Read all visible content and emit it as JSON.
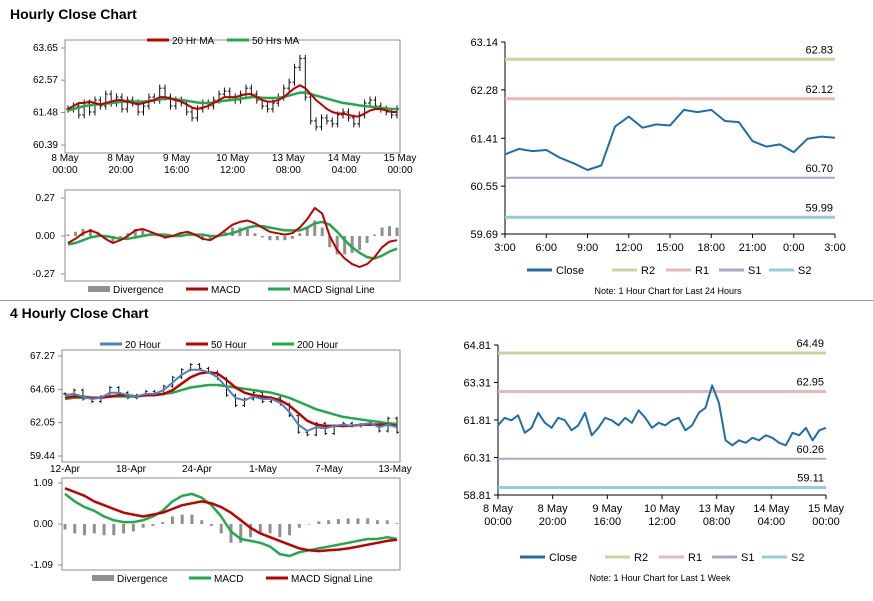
{
  "sections": {
    "hourly_title": "Hourly Close Chart",
    "four_hourly_title": "4 Hourly Close Chart"
  },
  "colors": {
    "red": "#c00000",
    "green": "#1faa4b",
    "blue": "#4f81bd",
    "close_line": "#1f6eaa",
    "r2": "#c4d79b",
    "r1": "#e6b9b8",
    "s1": "#b3a2c7",
    "s2": "#93cddd",
    "divergence": "#909090"
  },
  "chart_data": [
    {
      "id": "hourly-price",
      "type": "line",
      "title": "",
      "legend": [
        "20 Hr MA",
        "50 Hrs MA"
      ],
      "y_ticks": [
        "63.65",
        "62.57",
        "61.48",
        "60.39"
      ],
      "ylim": [
        60.39,
        63.65
      ],
      "x_ticks": [
        [
          "8 May",
          "00:00"
        ],
        [
          "8 May",
          "20:00"
        ],
        [
          "9 May",
          "16:00"
        ],
        [
          "10 May",
          "12:00"
        ],
        [
          "13 May",
          "08:00"
        ],
        [
          "14 May",
          "04:00"
        ],
        [
          "15 May",
          "00:00"
        ]
      ],
      "series": [
        {
          "name": "Price",
          "values": [
            61.6,
            61.7,
            61.4,
            61.8,
            61.5,
            61.9,
            61.7,
            62.1,
            61.8,
            62.0,
            61.6,
            61.9,
            61.8,
            61.5,
            61.7,
            62.0,
            61.9,
            62.3,
            62.0,
            61.7,
            61.9,
            61.8,
            61.5,
            61.3,
            61.6,
            61.8,
            61.7,
            61.9,
            62.1,
            62.2,
            62.0,
            61.9,
            62.1,
            62.3,
            62.1,
            61.9,
            61.7,
            61.6,
            61.8,
            62.0,
            62.3,
            62.5,
            63.0,
            63.3,
            62.0,
            61.2,
            61.0,
            61.3,
            61.2,
            61.1,
            61.4,
            61.5,
            61.3,
            61.1,
            61.4,
            61.8,
            61.9,
            61.7,
            61.6,
            61.5,
            61.4,
            61.6
          ]
        },
        {
          "name": "20 Hr MA",
          "values": [
            61.6,
            61.7,
            61.8,
            61.8,
            61.85,
            61.8,
            61.75,
            61.8,
            61.85,
            61.9,
            61.9,
            61.85,
            61.8,
            61.75,
            61.8,
            61.85,
            61.9,
            62.0,
            62.0,
            61.95,
            61.9,
            61.85,
            61.75,
            61.65,
            61.6,
            61.65,
            61.7,
            61.8,
            61.9,
            62.0,
            62.0,
            62.0,
            62.05,
            62.1,
            62.1,
            62.0,
            61.9,
            61.85,
            61.85,
            61.9,
            62.0,
            62.15,
            62.3,
            62.4,
            62.3,
            62.1,
            61.9,
            61.75,
            61.6,
            61.5,
            61.45,
            61.45,
            61.4,
            61.35,
            61.35,
            61.45,
            61.55,
            61.6,
            61.6,
            61.55,
            61.5,
            61.5
          ]
        },
        {
          "name": "50 Hrs MA",
          "values": [
            61.55,
            61.6,
            61.65,
            61.7,
            61.72,
            61.75,
            61.75,
            61.78,
            61.8,
            61.82,
            61.85,
            61.85,
            61.85,
            61.85,
            61.85,
            61.87,
            61.9,
            61.92,
            61.95,
            61.95,
            61.93,
            61.9,
            61.88,
            61.85,
            61.82,
            61.8,
            61.8,
            61.82,
            61.85,
            61.88,
            61.9,
            61.92,
            61.95,
            61.97,
            62.0,
            62.0,
            61.98,
            61.97,
            61.97,
            61.98,
            62.0,
            62.05,
            62.1,
            62.15,
            62.15,
            62.1,
            62.05,
            62.0,
            61.95,
            61.9,
            61.85,
            61.8,
            61.78,
            61.75,
            61.72,
            61.7,
            61.68,
            61.66,
            61.64,
            61.62,
            61.6,
            61.6
          ]
        }
      ]
    },
    {
      "id": "hourly-macd",
      "type": "line",
      "legend": [
        "Divergence",
        "MACD",
        "MACD Signal Line"
      ],
      "y_ticks": [
        "0.27",
        "0.00",
        "-0.27"
      ],
      "ylim": [
        -0.27,
        0.27
      ],
      "series": [
        {
          "name": "MACD",
          "values": [
            -0.05,
            -0.02,
            0.02,
            0.04,
            0.02,
            -0.02,
            -0.05,
            -0.03,
            0.0,
            0.04,
            0.05,
            0.03,
            0.01,
            -0.01,
            0.0,
            0.02,
            0.03,
            0.01,
            -0.02,
            -0.03,
            0.0,
            0.04,
            0.08,
            0.1,
            0.11,
            0.09,
            0.06,
            0.03,
            0.02,
            0.01,
            0.02,
            0.06,
            0.12,
            0.2,
            0.16,
            0.0,
            -0.1,
            -0.16,
            -0.2,
            -0.22,
            -0.2,
            -0.15,
            -0.08,
            -0.04,
            -0.03
          ]
        },
        {
          "name": "MACD Signal Line",
          "values": [
            -0.06,
            -0.05,
            -0.03,
            -0.01,
            0.0,
            0.0,
            -0.01,
            -0.02,
            -0.02,
            -0.01,
            0.0,
            0.01,
            0.01,
            0.01,
            0.0,
            0.0,
            0.01,
            0.01,
            0.01,
            0.0,
            0.0,
            0.01,
            0.02,
            0.04,
            0.06,
            0.07,
            0.07,
            0.06,
            0.05,
            0.04,
            0.04,
            0.04,
            0.06,
            0.09,
            0.1,
            0.08,
            0.03,
            -0.03,
            -0.08,
            -0.12,
            -0.15,
            -0.16,
            -0.14,
            -0.11,
            -0.09
          ]
        },
        {
          "name": "Divergence",
          "values": [
            0.01,
            0.03,
            0.05,
            0.05,
            0.02,
            -0.02,
            -0.04,
            -0.01,
            0.02,
            0.05,
            0.05,
            0.02,
            0.0,
            -0.02,
            0.0,
            0.02,
            0.02,
            0.0,
            -0.03,
            -0.03,
            0.0,
            0.03,
            0.06,
            0.06,
            0.05,
            0.02,
            -0.01,
            -0.03,
            -0.03,
            -0.03,
            -0.02,
            0.02,
            0.06,
            0.11,
            0.06,
            -0.08,
            -0.13,
            -0.13,
            -0.12,
            -0.1,
            -0.05,
            0.01,
            0.06,
            0.07,
            0.06
          ]
        }
      ]
    },
    {
      "id": "hourly-pivot",
      "type": "line",
      "y_ticks": [
        "63.14",
        "62.28",
        "61.41",
        "60.55",
        "59.69"
      ],
      "ylim": [
        59.69,
        63.14
      ],
      "x_ticks": [
        "3:00",
        "6:00",
        "9:00",
        "12:00",
        "15:00",
        "18:00",
        "21:00",
        "0:00",
        "3:00"
      ],
      "levels": [
        {
          "name": "R2",
          "value": 62.83,
          "label": "62.83"
        },
        {
          "name": "R1",
          "value": 62.12,
          "label": "62.12"
        },
        {
          "name": "S1",
          "value": 60.7,
          "label": "60.70"
        },
        {
          "name": "S2",
          "value": 59.99,
          "label": "59.99"
        }
      ],
      "close": [
        61.12,
        61.22,
        61.18,
        61.2,
        61.06,
        60.96,
        60.84,
        60.92,
        61.62,
        61.8,
        61.6,
        61.66,
        61.64,
        61.92,
        61.88,
        61.92,
        61.72,
        61.7,
        61.36,
        61.26,
        61.3,
        61.16,
        61.4,
        61.44,
        61.42
      ],
      "legend": [
        "Close",
        "R2",
        "R1",
        "S1",
        "S2"
      ],
      "note": "Note: 1 Hour Chart for Last 24 Hours"
    },
    {
      "id": "four-hourly-price",
      "type": "line",
      "legend": [
        "20 Hour",
        "50 Hour",
        "200 Hour"
      ],
      "y_ticks": [
        "67.27",
        "64.66",
        "62.05",
        "59.44"
      ],
      "ylim": [
        59.44,
        67.27
      ],
      "x_ticks": [
        "12-Apr",
        "18-Apr",
        "24-Apr",
        "1-May",
        "7-May",
        "13-May"
      ],
      "series": [
        {
          "name": "Price",
          "values": [
            64.3,
            64.6,
            63.9,
            63.7,
            64.1,
            64.8,
            64.4,
            64.0,
            64.2,
            64.5,
            64.3,
            64.9,
            65.6,
            66.2,
            66.6,
            66.3,
            66.0,
            65.5,
            64.2,
            63.4,
            63.9,
            64.4,
            63.7,
            64.0,
            63.5,
            62.6,
            61.3,
            61.1,
            62.0,
            61.2,
            61.8,
            62.0,
            61.8,
            61.9,
            62.1,
            61.4,
            62.4,
            61.3
          ]
        },
        {
          "name": "20 Hour",
          "values": [
            64.2,
            64.3,
            64.1,
            63.9,
            64.0,
            64.4,
            64.4,
            64.2,
            64.1,
            64.3,
            64.3,
            64.6,
            65.2,
            65.8,
            66.2,
            66.2,
            66.0,
            65.6,
            64.8,
            64.0,
            63.8,
            64.1,
            63.9,
            63.9,
            63.6,
            62.9,
            61.9,
            61.4,
            61.7,
            61.6,
            61.8,
            61.9,
            61.8,
            61.9,
            62.0,
            61.7,
            61.9,
            61.7
          ]
        },
        {
          "name": "50 Hour",
          "values": [
            64.0,
            64.1,
            64.1,
            64.0,
            64.0,
            64.1,
            64.2,
            64.2,
            64.1,
            64.2,
            64.2,
            64.3,
            64.6,
            65.1,
            65.6,
            65.9,
            66.0,
            65.9,
            65.4,
            64.8,
            64.4,
            64.2,
            64.1,
            64.0,
            63.8,
            63.4,
            62.8,
            62.2,
            61.9,
            61.8,
            61.8,
            61.8,
            61.8,
            61.9,
            61.9,
            61.9,
            61.9,
            61.8
          ]
        },
        {
          "name": "200 Hour",
          "values": [
            63.9,
            64.0,
            64.0,
            64.0,
            64.0,
            64.1,
            64.1,
            64.1,
            64.1,
            64.2,
            64.2,
            64.3,
            64.4,
            64.6,
            64.8,
            64.9,
            65.0,
            65.0,
            64.9,
            64.8,
            64.7,
            64.6,
            64.5,
            64.4,
            64.2,
            64.0,
            63.7,
            63.4,
            63.1,
            62.9,
            62.7,
            62.5,
            62.4,
            62.3,
            62.2,
            62.1,
            62.0,
            61.95
          ]
        }
      ]
    },
    {
      "id": "four-hourly-macd",
      "type": "line",
      "legend": [
        "Divergence",
        "MACD",
        "MACD Signal Line"
      ],
      "y_ticks": [
        "1.09",
        "0.00",
        "-1.09"
      ],
      "ylim": [
        -1.09,
        1.09
      ],
      "series": [
        {
          "name": "MACD",
          "values": [
            0.8,
            0.6,
            0.45,
            0.35,
            0.2,
            0.1,
            0.05,
            0.05,
            0.1,
            0.2,
            0.35,
            0.6,
            0.75,
            0.8,
            0.7,
            0.5,
            0.2,
            -0.2,
            -0.4,
            -0.45,
            -0.5,
            -0.6,
            -0.8,
            -0.85,
            -0.75,
            -0.7,
            -0.65,
            -0.6,
            -0.55,
            -0.5,
            -0.45,
            -0.4,
            -0.4,
            -0.35,
            -0.4
          ]
        },
        {
          "name": "MACD Signal Line",
          "values": [
            0.95,
            0.85,
            0.75,
            0.6,
            0.5,
            0.4,
            0.3,
            0.25,
            0.2,
            0.25,
            0.3,
            0.4,
            0.5,
            0.55,
            0.6,
            0.55,
            0.45,
            0.3,
            0.1,
            -0.1,
            -0.25,
            -0.35,
            -0.45,
            -0.55,
            -0.65,
            -0.7,
            -0.72,
            -0.7,
            -0.68,
            -0.65,
            -0.6,
            -0.55,
            -0.5,
            -0.45,
            -0.42
          ]
        },
        {
          "name": "Divergence",
          "values": [
            -0.15,
            -0.25,
            -0.3,
            -0.25,
            -0.3,
            -0.3,
            -0.25,
            -0.2,
            -0.1,
            -0.05,
            0.05,
            0.2,
            0.25,
            0.25,
            0.1,
            -0.05,
            -0.25,
            -0.5,
            -0.5,
            -0.35,
            -0.25,
            -0.25,
            -0.35,
            -0.3,
            -0.1,
            0.0,
            0.07,
            0.1,
            0.13,
            0.15,
            0.15,
            0.15,
            0.1,
            0.1,
            0.02
          ]
        }
      ]
    },
    {
      "id": "four-hourly-pivot",
      "type": "line",
      "y_ticks": [
        "64.81",
        "63.31",
        "61.81",
        "60.31",
        "58.81"
      ],
      "ylim": [
        58.81,
        64.81
      ],
      "x_ticks": [
        [
          "8 May",
          "00:00"
        ],
        [
          "8 May",
          "20:00"
        ],
        [
          "9 May",
          "16:00"
        ],
        [
          "10 May",
          "12:00"
        ],
        [
          "13 May",
          "08:00"
        ],
        [
          "14 May",
          "04:00"
        ],
        [
          "15 May",
          "00:00"
        ]
      ],
      "levels": [
        {
          "name": "R2",
          "value": 64.49,
          "label": "64.49"
        },
        {
          "name": "R1",
          "value": 62.95,
          "label": "62.95"
        },
        {
          "name": "S1",
          "value": 60.26,
          "label": "60.26"
        },
        {
          "name": "S2",
          "value": 59.11,
          "label": "59.11"
        }
      ],
      "close": [
        61.6,
        61.9,
        61.8,
        62.0,
        61.3,
        61.5,
        62.1,
        61.7,
        61.5,
        61.9,
        61.8,
        61.4,
        61.6,
        62.1,
        61.2,
        61.5,
        61.9,
        61.8,
        61.6,
        61.9,
        61.7,
        62.2,
        61.9,
        61.5,
        61.7,
        61.6,
        61.8,
        61.9,
        61.4,
        61.6,
        62.1,
        62.3,
        63.2,
        62.5,
        61.0,
        60.8,
        61.0,
        60.9,
        61.1,
        61.0,
        61.2,
        61.1,
        60.9,
        60.8,
        61.3,
        61.2,
        61.5,
        61.0,
        61.4,
        61.5
      ],
      "legend": [
        "Close",
        "R2",
        "R1",
        "S1",
        "S2"
      ],
      "note": "Note: 1 Hour Chart for Last 1 Week"
    }
  ]
}
